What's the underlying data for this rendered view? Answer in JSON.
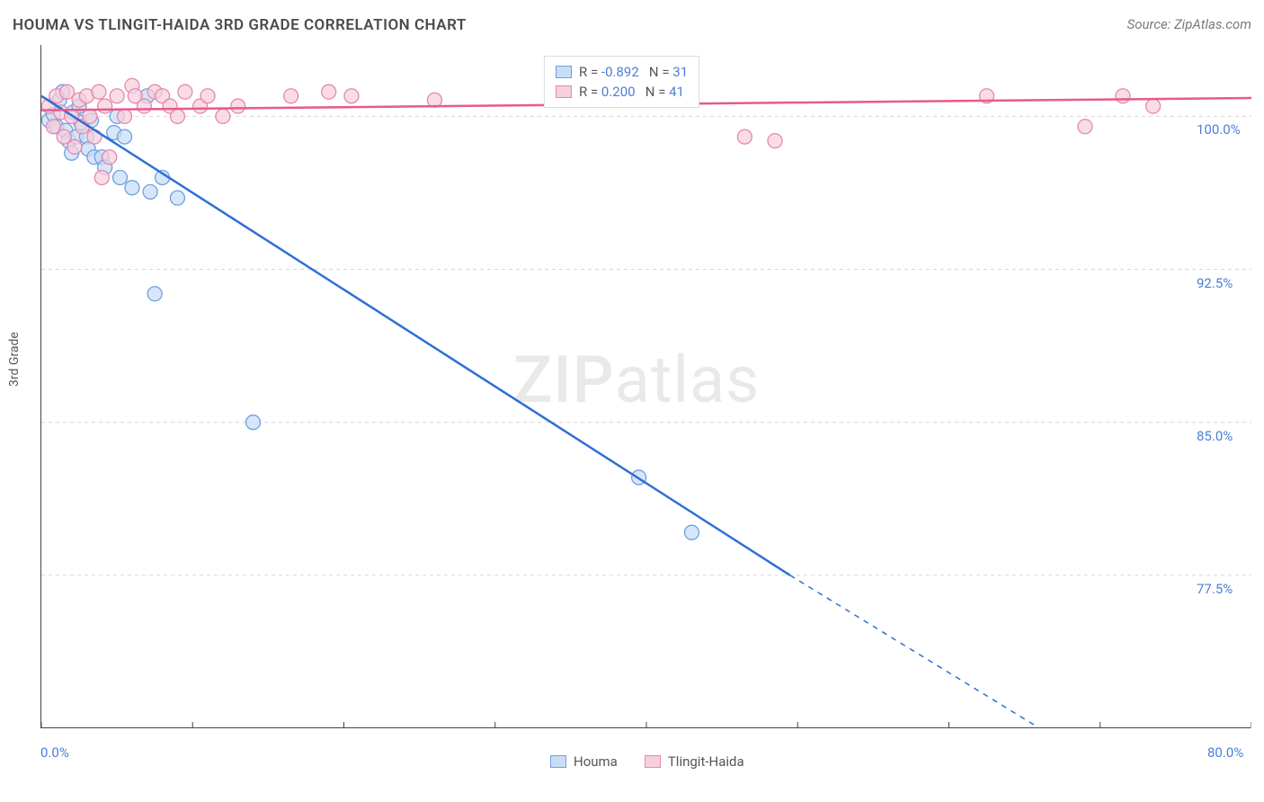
{
  "title": "HOUMA VS TLINGIT-HAIDA 3RD GRADE CORRELATION CHART",
  "source": "Source: ZipAtlas.com",
  "ylabel": "3rd Grade",
  "watermark_1": "ZIP",
  "watermark_2": "atlas",
  "chart": {
    "type": "scatter",
    "xlim": [
      0,
      80
    ],
    "ylim": [
      70,
      103.5
    ],
    "x_ticks": [
      0,
      10,
      20,
      30,
      40,
      50,
      60,
      70,
      80
    ],
    "x_tick_labels": {
      "0": "0.0%",
      "80": "80.0%"
    },
    "y_grid": [
      77.5,
      85.0,
      92.5,
      100.0
    ],
    "y_tick_labels": [
      "77.5%",
      "85.0%",
      "92.5%",
      "100.0%"
    ],
    "grid_color": "#d6d6d6",
    "grid_dash": "4,4",
    "axis_color": "#444444",
    "tick_label_color": "#4a7fd8",
    "background_color": "#ffffff",
    "series": [
      {
        "name": "Houma",
        "marker_fill": "#c9ddf6",
        "marker_stroke": "#6fa0e2",
        "line_color": "#2e6fd6",
        "line_width": 2.5,
        "marker_r": 8,
        "opacity": 0.75,
        "R": "-0.892",
        "N": "31",
        "points": [
          [
            0.5,
            99.8
          ],
          [
            0.8,
            100.1
          ],
          [
            1.0,
            99.5
          ],
          [
            1.2,
            100.8
          ],
          [
            1.4,
            101.2
          ],
          [
            1.6,
            99.3
          ],
          [
            1.8,
            98.8
          ],
          [
            2.0,
            98.2
          ],
          [
            2.1,
            100.2
          ],
          [
            2.3,
            99.0
          ],
          [
            2.5,
            100.5
          ],
          [
            2.6,
            99.7
          ],
          [
            3.0,
            99.0
          ],
          [
            3.1,
            98.4
          ],
          [
            3.3,
            99.8
          ],
          [
            3.5,
            98.0
          ],
          [
            4.0,
            98.0
          ],
          [
            4.2,
            97.5
          ],
          [
            4.8,
            99.2
          ],
          [
            5.0,
            100.0
          ],
          [
            5.2,
            97.0
          ],
          [
            5.5,
            99.0
          ],
          [
            6.0,
            96.5
          ],
          [
            7.0,
            101.0
          ],
          [
            7.2,
            96.3
          ],
          [
            8.0,
            97.0
          ],
          [
            9.0,
            96.0
          ],
          [
            7.5,
            91.3
          ],
          [
            14.0,
            85.0
          ],
          [
            39.5,
            82.3
          ],
          [
            43.0,
            79.6
          ]
        ],
        "regression": {
          "x1": 0,
          "y1": 101.0,
          "x2": 49.5,
          "y2": 77.5
        },
        "regression_dashed": {
          "x1": 49.5,
          "y1": 77.5,
          "x2": 66,
          "y2": 70
        }
      },
      {
        "name": "Tlingit-Haida",
        "marker_fill": "#f7cedd",
        "marker_stroke": "#e589ac",
        "line_color": "#e65a8f",
        "line_width": 2.5,
        "marker_r": 8,
        "opacity": 0.72,
        "R": "0.200",
        "N": "41",
        "points": [
          [
            0.5,
            100.5
          ],
          [
            0.8,
            99.5
          ],
          [
            1.0,
            101.0
          ],
          [
            1.3,
            100.2
          ],
          [
            1.5,
            99.0
          ],
          [
            1.7,
            101.2
          ],
          [
            2.0,
            100.0
          ],
          [
            2.2,
            98.5
          ],
          [
            2.5,
            100.8
          ],
          [
            2.7,
            99.5
          ],
          [
            3.0,
            101.0
          ],
          [
            3.2,
            100.0
          ],
          [
            3.5,
            99.0
          ],
          [
            3.8,
            101.2
          ],
          [
            4.0,
            97.0
          ],
          [
            4.2,
            100.5
          ],
          [
            4.5,
            98.0
          ],
          [
            5.0,
            101.0
          ],
          [
            5.5,
            100.0
          ],
          [
            6.0,
            101.5
          ],
          [
            6.2,
            101.0
          ],
          [
            6.8,
            100.5
          ],
          [
            7.5,
            101.2
          ],
          [
            8.0,
            101.0
          ],
          [
            8.5,
            100.5
          ],
          [
            9.0,
            100.0
          ],
          [
            9.5,
            101.2
          ],
          [
            10.5,
            100.5
          ],
          [
            11.0,
            101.0
          ],
          [
            12.0,
            100.0
          ],
          [
            13.0,
            100.5
          ],
          [
            16.5,
            101.0
          ],
          [
            19.0,
            101.2
          ],
          [
            20.5,
            101.0
          ],
          [
            26.0,
            100.8
          ],
          [
            46.5,
            99.0
          ],
          [
            48.5,
            98.8
          ],
          [
            62.5,
            101.0
          ],
          [
            69.0,
            99.5
          ],
          [
            71.5,
            101.0
          ],
          [
            73.5,
            100.5
          ]
        ],
        "regression": {
          "x1": 0,
          "y1": 100.3,
          "x2": 80,
          "y2": 100.9
        }
      }
    ]
  },
  "legend_top": {
    "rows": [
      {
        "swatch_fill": "#c9ddf6",
        "swatch_stroke": "#6fa0e2",
        "r_label": "R =",
        "r_val": "-0.892",
        "n_label": "N =",
        "n_val": "31"
      },
      {
        "swatch_fill": "#f7cedd",
        "swatch_stroke": "#e589ac",
        "r_label": "R =",
        "r_val": "0.200",
        "n_label": "N =",
        "n_val": "41"
      }
    ]
  },
  "legend_bottom": {
    "items": [
      {
        "swatch_fill": "#c9ddf6",
        "swatch_stroke": "#6fa0e2",
        "label": "Houma"
      },
      {
        "swatch_fill": "#f7cedd",
        "swatch_stroke": "#e589ac",
        "label": "Tlingit-Haida"
      }
    ]
  }
}
